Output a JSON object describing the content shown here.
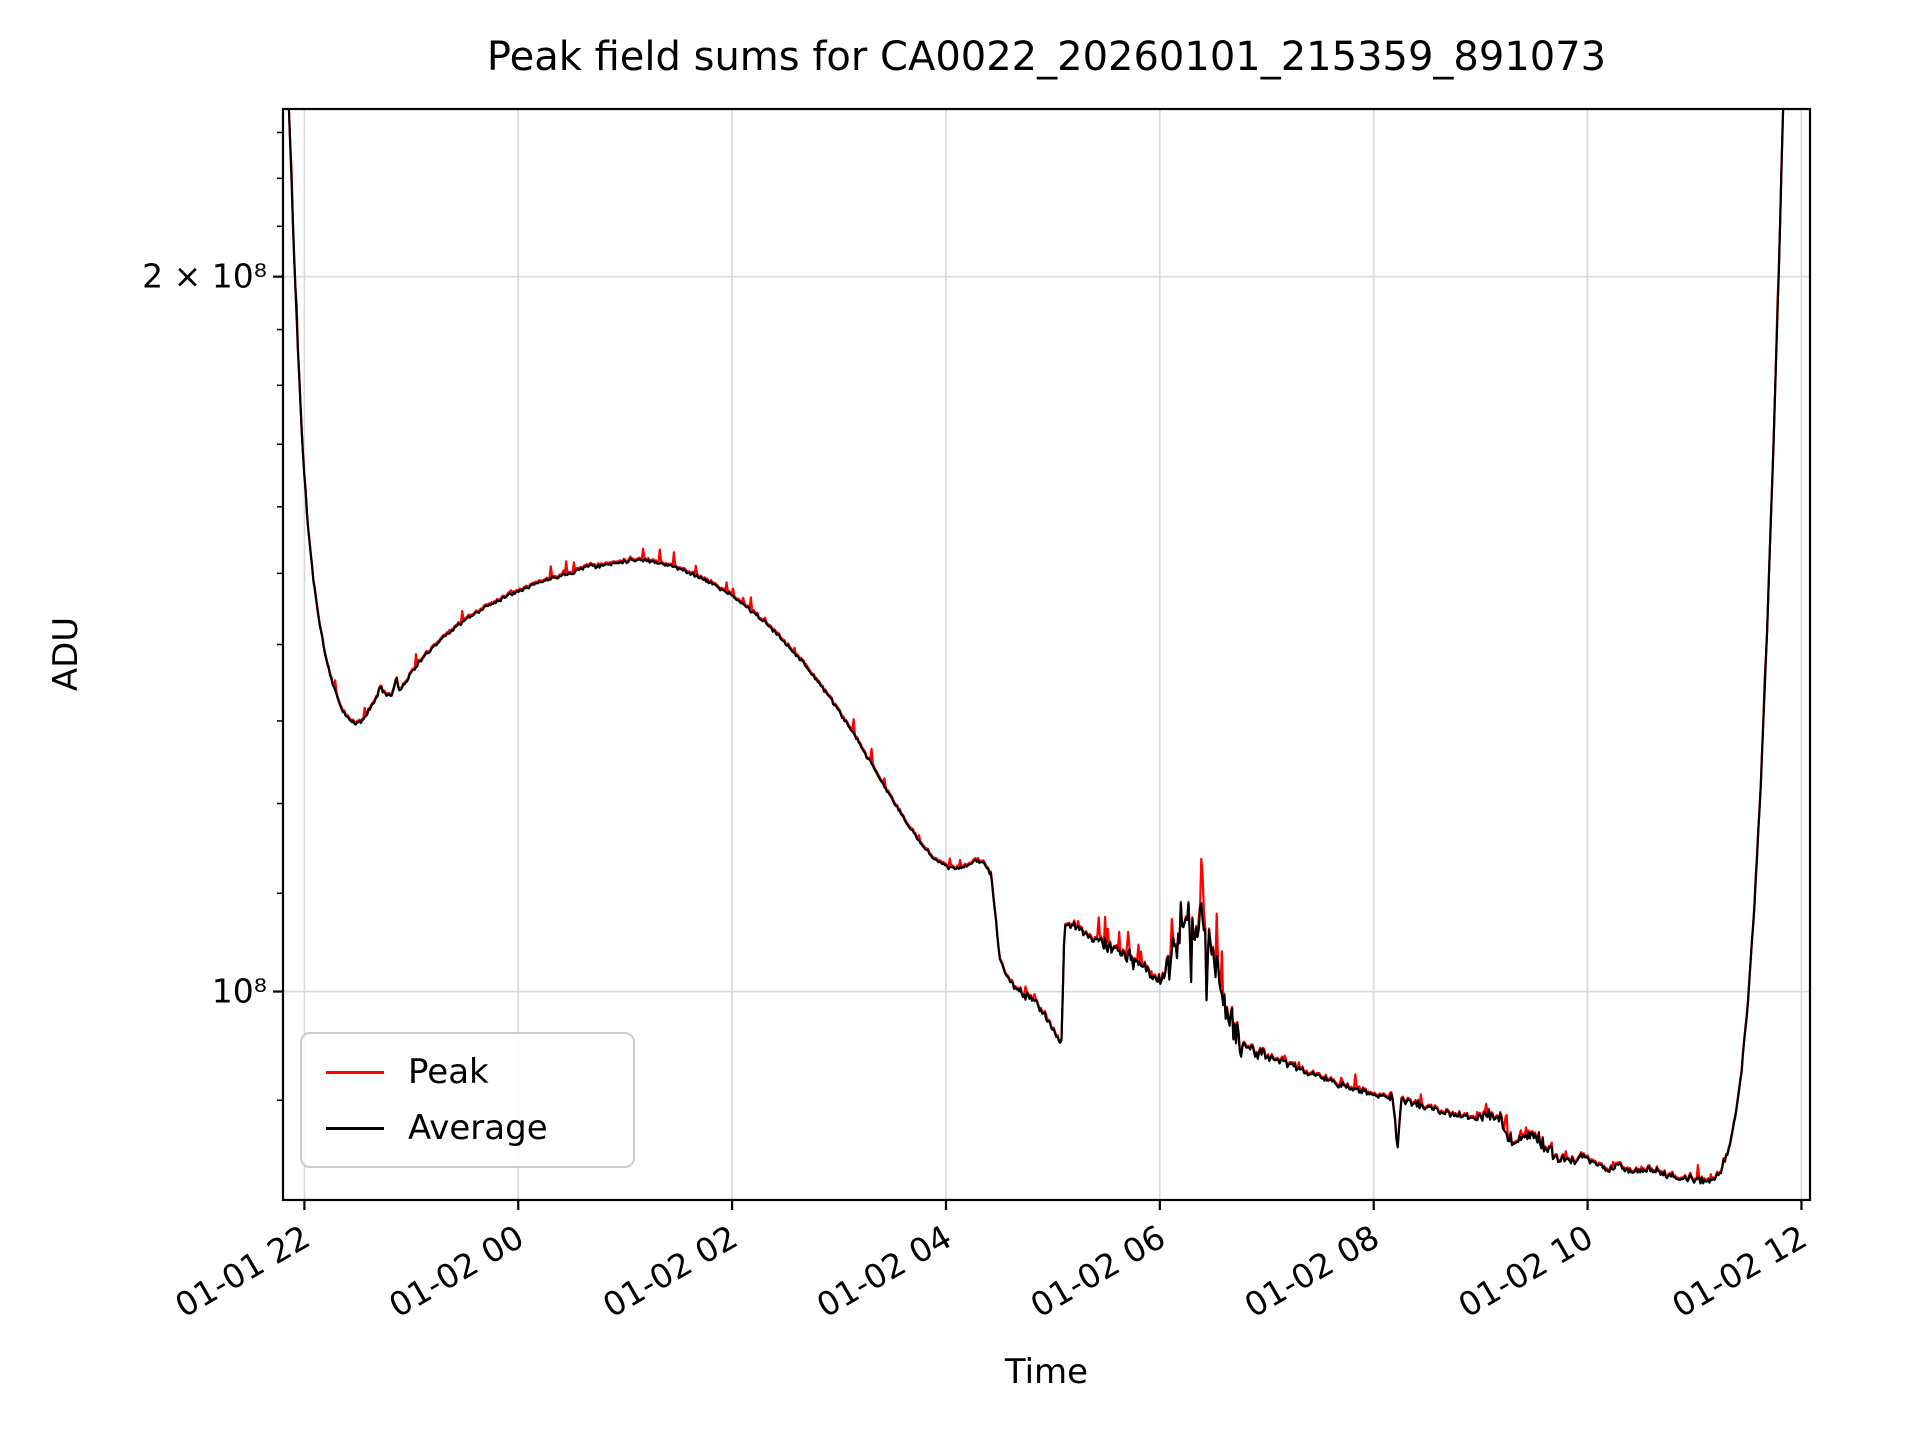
{
  "chart_data": {
    "type": "line",
    "title": "Peak field sums for CA0022_20260101_215359_891073",
    "xlabel": "Time",
    "ylabel": "ADU",
    "yscale": "log",
    "grid": true,
    "legend_position": "lower left",
    "x_unit": "hours since 2026-01-01 00:00",
    "xlim": [
      21.8,
      36.08
    ],
    "ylim": [
      81700000.0,
      235300000.0
    ],
    "x_ticks": [
      {
        "t": 22,
        "label": "01-01 22"
      },
      {
        "t": 24,
        "label": "01-02 00"
      },
      {
        "t": 26,
        "label": "01-02 02"
      },
      {
        "t": 28,
        "label": "01-02 04"
      },
      {
        "t": 30,
        "label": "01-02 06"
      },
      {
        "t": 32,
        "label": "01-02 08"
      },
      {
        "t": 34,
        "label": "01-02 10"
      },
      {
        "t": 36,
        "label": "01-02 12"
      }
    ],
    "y_ticks": [
      {
        "v": 100000000.0,
        "label": "10⁸"
      },
      {
        "v": 200000000.0,
        "label": "2 × 10⁸"
      }
    ],
    "y_minor_ticks": [
      90000000.0,
      110000000.0,
      120000000.0,
      130000000.0,
      140000000.0,
      150000000.0,
      160000000.0,
      170000000.0,
      180000000.0,
      190000000.0,
      210000000.0,
      220000000.0,
      230000000.0
    ],
    "series": [
      {
        "name": "Peak",
        "color": "#ff0000"
      },
      {
        "name": "Average",
        "color": "#000000"
      }
    ],
    "points": [
      [
        21.82,
        260000000.0
      ],
      [
        21.86,
        232000000.0
      ],
      [
        21.9,
        206000000.0
      ],
      [
        21.94,
        186000000.0
      ],
      [
        21.98,
        170000000.0
      ],
      [
        22.03,
        157500000.0
      ],
      [
        22.08,
        149500000.0
      ],
      [
        22.14,
        143000000.0
      ],
      [
        22.2,
        138200000.0
      ],
      [
        22.27,
        134500000.0
      ],
      [
        22.34,
        131800000.0
      ],
      [
        22.41,
        130200000.0
      ],
      [
        22.48,
        129600000.0
      ],
      [
        22.54,
        130000000.0
      ],
      [
        22.6,
        131200000.0
      ],
      [
        22.66,
        132600000.0
      ],
      [
        22.71,
        134200000.0
      ],
      [
        22.76,
        133500000.0
      ],
      [
        22.82,
        133200000.0
      ],
      [
        22.86,
        135600000.0
      ],
      [
        22.89,
        133800000.0
      ],
      [
        22.94,
        134800000.0
      ],
      [
        23.0,
        136200000.0
      ],
      [
        23.1,
        138000000.0
      ],
      [
        23.2,
        139600000.0
      ],
      [
        23.3,
        141000000.0
      ],
      [
        23.4,
        142200000.0
      ],
      [
        23.5,
        143300000.0
      ],
      [
        23.6,
        144300000.0
      ],
      [
        23.7,
        145200000.0
      ],
      [
        23.8,
        146000000.0
      ],
      [
        23.9,
        146800000.0
      ],
      [
        24.0,
        147500000.0
      ],
      [
        24.1,
        148100000.0
      ],
      [
        24.2,
        148700000.0
      ],
      [
        24.3,
        149200000.0
      ],
      [
        24.4,
        149700000.0
      ],
      [
        24.5,
        150100000.0
      ],
      [
        24.6,
        150700000.0
      ],
      [
        24.66,
        151300000.0
      ],
      [
        24.72,
        150900000.0
      ],
      [
        24.8,
        151200000.0
      ],
      [
        24.9,
        151500000.0
      ],
      [
        25.0,
        151800000.0
      ],
      [
        25.1,
        152000000.0
      ],
      [
        25.2,
        151900000.0
      ],
      [
        25.3,
        151600000.0
      ],
      [
        25.4,
        151200000.0
      ],
      [
        25.5,
        150700000.0
      ],
      [
        25.6,
        150100000.0
      ],
      [
        25.7,
        149400000.0
      ],
      [
        25.8,
        148600000.0
      ],
      [
        25.9,
        147700000.0
      ],
      [
        26.0,
        146700000.0
      ],
      [
        26.1,
        145600000.0
      ],
      [
        26.2,
        144400000.0
      ],
      [
        26.3,
        143100000.0
      ],
      [
        26.4,
        141700000.0
      ],
      [
        26.5,
        140200000.0
      ],
      [
        26.6,
        138600000.0
      ],
      [
        26.7,
        136900000.0
      ],
      [
        26.8,
        135100000.0
      ],
      [
        26.9,
        133200000.0
      ],
      [
        27.0,
        131200000.0
      ],
      [
        27.1,
        129100000.0
      ],
      [
        27.2,
        126900000.0
      ],
      [
        27.3,
        124700000.0
      ],
      [
        27.4,
        122500000.0
      ],
      [
        27.5,
        120400000.0
      ],
      [
        27.6,
        118400000.0
      ],
      [
        27.7,
        116500000.0
      ],
      [
        27.8,
        114900000.0
      ],
      [
        27.9,
        113700000.0
      ],
      [
        28.0,
        112900000.0
      ],
      [
        28.1,
        112600000.0
      ],
      [
        28.2,
        112900000.0
      ],
      [
        28.28,
        113700000.0
      ],
      [
        28.35,
        113300000.0
      ],
      [
        28.42,
        112000000.0
      ],
      [
        28.46,
        108000000.0
      ],
      [
        28.5,
        103500000.0
      ],
      [
        28.56,
        101500000.0
      ],
      [
        28.64,
        100500000.0
      ],
      [
        28.72,
        99800000.0
      ],
      [
        28.8,
        99200000.0
      ],
      [
        28.88,
        98400000.0
      ],
      [
        28.94,
        97500000.0
      ],
      [
        29.0,
        96300000.0
      ],
      [
        29.05,
        95600000.0
      ],
      [
        29.08,
        95200000.0
      ],
      [
        29.11,
        106500000.0
      ],
      [
        29.18,
        106700000.0
      ],
      [
        29.26,
        106100000.0
      ],
      [
        29.36,
        105400000.0
      ],
      [
        29.46,
        104800000.0
      ],
      [
        29.56,
        104300000.0
      ],
      [
        29.66,
        103800000.0
      ],
      [
        29.76,
        103100000.0
      ],
      [
        29.86,
        102300000.0
      ],
      [
        29.94,
        101500000.0
      ],
      [
        30.0,
        101000000.0
      ],
      [
        30.06,
        101600000.0
      ],
      [
        30.12,
        103800000.0
      ],
      [
        30.18,
        106200000.0
      ],
      [
        30.24,
        107200000.0
      ],
      [
        30.3,
        105800000.0
      ],
      [
        30.36,
        107400000.0
      ],
      [
        30.42,
        105800000.0
      ],
      [
        30.48,
        103800000.0
      ],
      [
        30.54,
        101800000.0
      ],
      [
        30.6,
        99500000.0
      ],
      [
        30.66,
        97200000.0
      ],
      [
        30.72,
        95800000.0
      ],
      [
        30.8,
        95000000.0
      ],
      [
        30.9,
        94400000.0
      ],
      [
        31.0,
        94000000.0
      ],
      [
        31.1,
        93600000.0
      ],
      [
        31.2,
        93200000.0
      ],
      [
        31.3,
        92800000.0
      ],
      [
        31.4,
        92400000.0
      ],
      [
        31.5,
        92000000.0
      ],
      [
        31.6,
        91700000.0
      ],
      [
        31.7,
        91300000.0
      ],
      [
        31.8,
        91000000.0
      ],
      [
        31.9,
        90700000.0
      ],
      [
        32.0,
        90500000.0
      ],
      [
        32.1,
        90400000.0
      ],
      [
        32.18,
        90200000.0
      ],
      [
        32.22,
        85800000.0
      ],
      [
        32.26,
        90000000.0
      ],
      [
        32.36,
        89800000.0
      ],
      [
        32.46,
        89500000.0
      ],
      [
        32.56,
        89200000.0
      ],
      [
        32.66,
        88900000.0
      ],
      [
        32.76,
        88700000.0
      ],
      [
        32.86,
        88500000.0
      ],
      [
        32.96,
        88400000.0
      ],
      [
        33.04,
        88600000.0
      ],
      [
        33.12,
        89000000.0
      ],
      [
        33.18,
        88400000.0
      ],
      [
        33.24,
        87200000.0
      ],
      [
        33.3,
        86300000.0
      ],
      [
        33.38,
        86700000.0
      ],
      [
        33.46,
        87100000.0
      ],
      [
        33.54,
        86600000.0
      ],
      [
        33.62,
        85800000.0
      ],
      [
        33.7,
        85300000.0
      ],
      [
        33.78,
        85000000.0
      ],
      [
        33.88,
        84700000.0
      ],
      [
        33.96,
        85300000.0
      ],
      [
        34.02,
        84900000.0
      ],
      [
        34.1,
        84400000.0
      ],
      [
        34.2,
        84100000.0
      ],
      [
        34.28,
        84600000.0
      ],
      [
        34.36,
        84200000.0
      ],
      [
        34.46,
        83900000.0
      ],
      [
        34.56,
        84200000.0
      ],
      [
        34.66,
        83900000.0
      ],
      [
        34.76,
        83700000.0
      ],
      [
        34.86,
        83500000.0
      ],
      [
        34.96,
        83400000.0
      ],
      [
        35.06,
        83300000.0
      ],
      [
        35.14,
        83250000.0
      ],
      [
        35.2,
        83500000.0
      ],
      [
        35.26,
        84300000.0
      ],
      [
        35.32,
        85800000.0
      ],
      [
        35.38,
        88400000.0
      ],
      [
        35.44,
        92500000.0
      ],
      [
        35.5,
        99000000.0
      ],
      [
        35.56,
        108500000.0
      ],
      [
        35.62,
        122000000.0
      ],
      [
        35.68,
        142000000.0
      ],
      [
        35.74,
        170000000.0
      ],
      [
        35.79,
        202000000.0
      ],
      [
        35.84,
        245000000.0
      ]
    ],
    "noise": {
      "seed": 11,
      "dt": 0.012,
      "base_amp": 0.0022,
      "regions": [
        {
          "from": 28.45,
          "to": 29.4,
          "amp": 0.0045
        },
        {
          "from": 29.4,
          "to": 29.85,
          "amp": 0.01
        },
        {
          "from": 29.85,
          "to": 30.06,
          "amp": 0.006
        },
        {
          "from": 30.06,
          "to": 30.78,
          "amp": 0.026
        },
        {
          "from": 30.78,
          "to": 31.05,
          "amp": 0.009
        },
        {
          "from": 31.05,
          "to": 32.95,
          "amp": 0.004
        },
        {
          "from": 32.95,
          "to": 33.75,
          "amp": 0.0075
        },
        {
          "from": 33.75,
          "to": 35.3,
          "amp": 0.005
        }
      ],
      "down_spike": {
        "from": 30.18,
        "to": 30.8,
        "prob": 0.1,
        "amp": 0.055
      },
      "peak_offset": 0.0015,
      "peak_spike": {
        "prob": 0.05,
        "amp": 0.014
      },
      "peak_spike_regions": [
        {
          "from": 29.4,
          "to": 29.85,
          "prob": 0.15,
          "amp": 0.022
        },
        {
          "from": 30.06,
          "to": 30.62,
          "prob": 0.3,
          "amp": 0.045
        },
        {
          "from": 32.95,
          "to": 33.75,
          "prob": 0.1,
          "amp": 0.018
        }
      ]
    }
  }
}
